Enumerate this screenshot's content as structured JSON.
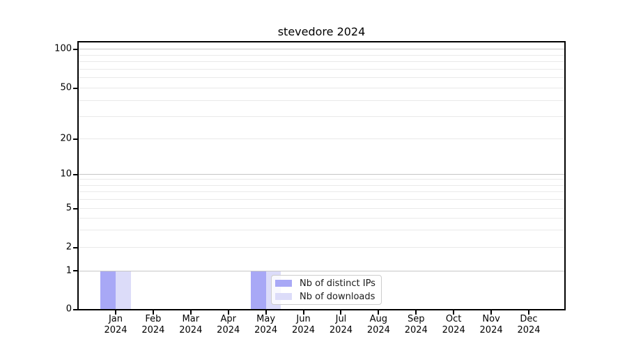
{
  "chart_data": {
    "type": "bar",
    "title": "stevedore 2024",
    "categories": [
      "Jan 2024",
      "Feb 2024",
      "Mar 2024",
      "Apr 2024",
      "May 2024",
      "Jun 2024",
      "Jul 2024",
      "Aug 2024",
      "Sep 2024",
      "Oct 2024",
      "Nov 2024",
      "Dec 2024"
    ],
    "series": [
      {
        "name": "Nb of distinct IPs",
        "color": "#a8a8f6",
        "values": [
          1,
          0,
          0,
          0,
          1,
          0,
          0,
          0,
          0,
          0,
          0,
          0
        ]
      },
      {
        "name": "Nb of downloads",
        "color": "#dcdcf9",
        "values": [
          1,
          0,
          0,
          0,
          1,
          0,
          0,
          0,
          0,
          0,
          0,
          0
        ]
      }
    ],
    "yscale": "symlog",
    "ylim": [
      0,
      112
    ],
    "ytick_values": [
      0,
      1,
      2,
      5,
      10,
      20,
      50,
      100
    ],
    "ytick_labels": [
      "0",
      "1",
      "2",
      "5",
      "10",
      "20",
      "50",
      "100"
    ],
    "y_major_gridlines": [
      1,
      10,
      100
    ],
    "y_minor_gridlines": [
      2,
      3,
      4,
      5,
      6,
      7,
      8,
      9,
      20,
      30,
      40,
      50,
      60,
      70,
      80,
      90
    ],
    "grid": true,
    "legend_position": "lower center, inside plot",
    "xlabel": "",
    "ylabel": ""
  },
  "colors": {
    "background": "#ffffff",
    "axis": "#000000",
    "tick_text": "#000000",
    "grid_major": "#c6c6c6",
    "grid_minor": "#e9e9e9",
    "legend_border": "#cccccc",
    "legend_background": "rgba(255,255,255,0.8)",
    "bar_distinct_ips": "#a8a8f6",
    "bar_downloads": "#dcdcf9"
  }
}
